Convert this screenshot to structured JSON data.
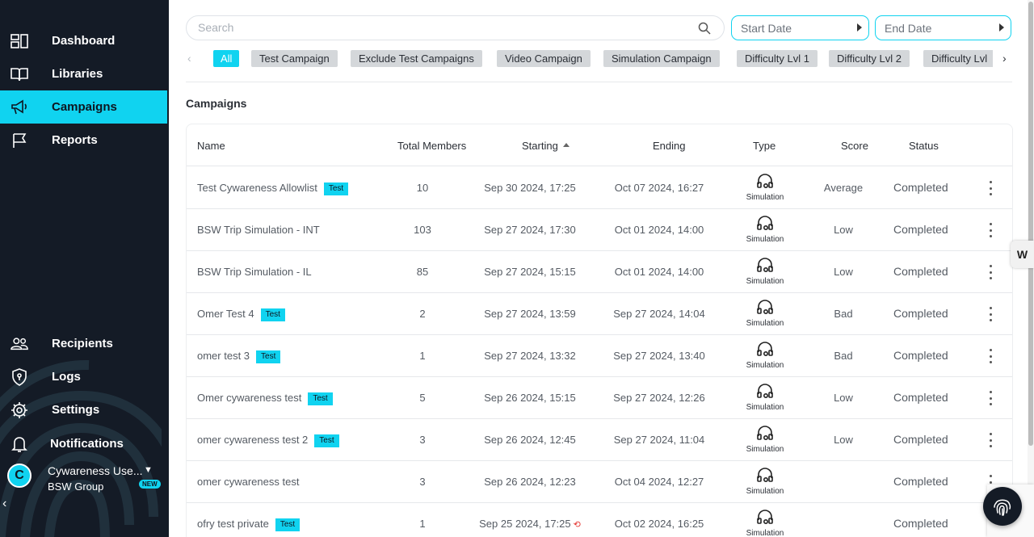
{
  "sidebar": {
    "nav_top": [
      {
        "label": "Dashboard",
        "icon": "dashboard-icon"
      },
      {
        "label": "Libraries",
        "icon": "book-icon"
      },
      {
        "label": "Campaigns",
        "icon": "megaphone-icon",
        "active": true
      },
      {
        "label": "Reports",
        "icon": "flag-icon"
      }
    ],
    "nav_bottom": [
      {
        "label": "Recipients",
        "icon": "users-icon"
      },
      {
        "label": "Logs",
        "icon": "shield-icon"
      },
      {
        "label": "Settings",
        "icon": "gear-icon"
      },
      {
        "label": "Notifications",
        "icon": "bell-icon"
      }
    ],
    "user": {
      "initial": "C",
      "name": "Cywareness Use...",
      "group": "BSW Group",
      "badge": "NEW"
    }
  },
  "search": {
    "placeholder": "Search"
  },
  "start_date": {
    "placeholder": "Start Date"
  },
  "end_date": {
    "placeholder": "End Date"
  },
  "filters": [
    "All",
    "Test Campaign",
    "Exclude Test Campaigns",
    "Video Campaign",
    "Simulation Campaign",
    "Difficulty Lvl 1",
    "Difficulty Lvl 2",
    "Difficulty Lvl"
  ],
  "section_title": "Campaigns",
  "table": {
    "headers": {
      "name": "Name",
      "members": "Total Members",
      "starting": "Starting",
      "ending": "Ending",
      "type": "Type",
      "score": "Score",
      "status": "Status"
    },
    "rows": [
      {
        "name": "Test Cywareness Allowlist",
        "tag": "Test",
        "members": "10",
        "starting": "Sep 30 2024, 17:25",
        "ending": "Oct 07 2024, 16:27",
        "type": "Simulation",
        "score": "Average",
        "status": "Completed"
      },
      {
        "name": "BSW Trip Simulation - INT",
        "tag": "",
        "members": "103",
        "starting": "Sep 27 2024, 17:30",
        "ending": "Oct 01 2024, 14:00",
        "type": "Simulation",
        "score": "Low",
        "status": "Completed"
      },
      {
        "name": "BSW Trip Simulation - IL",
        "tag": "",
        "members": "85",
        "starting": "Sep 27 2024, 15:15",
        "ending": "Oct 01 2024, 14:00",
        "type": "Simulation",
        "score": "Low",
        "status": "Completed"
      },
      {
        "name": "Omer Test 4",
        "tag": "Test",
        "members": "2",
        "starting": "Sep 27 2024, 13:59",
        "ending": "Sep 27 2024, 14:04",
        "type": "Simulation",
        "score": "Bad",
        "status": "Completed"
      },
      {
        "name": "omer test 3",
        "tag": "Test",
        "members": "1",
        "starting": "Sep 27 2024, 13:32",
        "ending": "Sep 27 2024, 13:40",
        "type": "Simulation",
        "score": "Bad",
        "status": "Completed"
      },
      {
        "name": "Omer cywareness test",
        "tag": "Test",
        "members": "5",
        "starting": "Sep 26 2024, 15:15",
        "ending": "Sep 27 2024, 12:26",
        "type": "Simulation",
        "score": "Low",
        "status": "Completed"
      },
      {
        "name": "omer cywareness test 2",
        "tag": "Test",
        "members": "3",
        "starting": "Sep 26 2024, 12:45",
        "ending": "Sep 27 2024, 11:04",
        "type": "Simulation",
        "score": "Low",
        "status": "Completed"
      },
      {
        "name": "omer cywareness test",
        "tag": "",
        "members": "3",
        "starting": "Sep 26 2024, 12:23",
        "ending": "Oct 04 2024, 12:27",
        "type": "Simulation",
        "score": "",
        "status": "Completed"
      },
      {
        "name": "ofry test private",
        "tag": "Test",
        "members": "1",
        "starting": "Sep 25 2024, 17:25",
        "ending": "Oct 02 2024, 16:25",
        "type": "Simulation",
        "score": "",
        "status": "Completed",
        "history": true
      }
    ]
  },
  "widgets": {
    "w_label": "W"
  },
  "colors": {
    "accent": "#10d3f0",
    "sidebar_bg": "#141b26",
    "tag_bg": "#10d3f0",
    "chip_bg": "#d4d7da",
    "history_red": "#e53935"
  }
}
